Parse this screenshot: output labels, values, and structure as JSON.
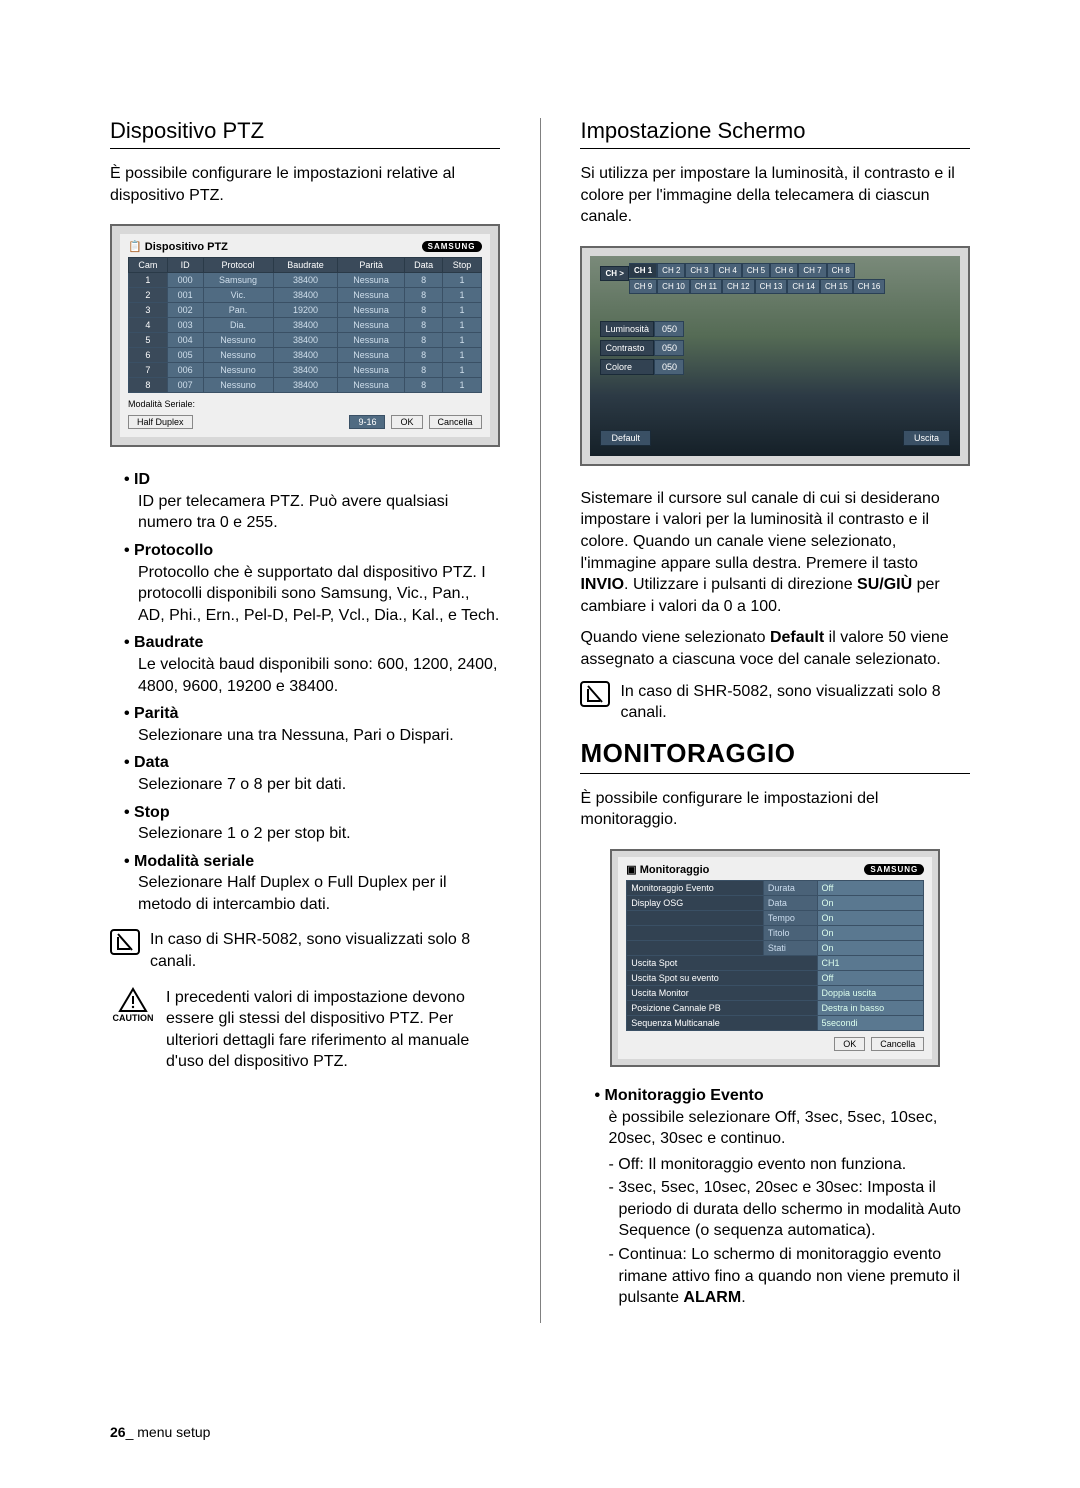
{
  "left": {
    "heading": "Dispositivo PTZ",
    "intro": "È possibile configurare le impostazioni relative al dispositivo PTZ.",
    "ptz_panel": {
      "title": "Dispositivo PTZ",
      "brand": "SAMSUNG",
      "headers": [
        "Cam",
        "ID",
        "Protocol",
        "Baudrate",
        "Parità",
        "Data",
        "Stop"
      ],
      "rows": [
        [
          "1",
          "000",
          "Samsung",
          "38400",
          "Nessuna",
          "8",
          "1"
        ],
        [
          "2",
          "001",
          "Vic.",
          "38400",
          "Nessuna",
          "8",
          "1"
        ],
        [
          "3",
          "002",
          "Pan.",
          "19200",
          "Nessuna",
          "8",
          "1"
        ],
        [
          "4",
          "003",
          "Dia.",
          "38400",
          "Nessuna",
          "8",
          "1"
        ],
        [
          "5",
          "004",
          "Nessuno",
          "38400",
          "Nessuna",
          "8",
          "1"
        ],
        [
          "6",
          "005",
          "Nessuno",
          "38400",
          "Nessuna",
          "8",
          "1"
        ],
        [
          "7",
          "006",
          "Nessuno",
          "38400",
          "Nessuna",
          "8",
          "1"
        ],
        [
          "8",
          "007",
          "Nessuno",
          "38400",
          "Nessuna",
          "8",
          "1"
        ]
      ],
      "serial_label": "Modalità Seriale:",
      "serial_value": "Half Duplex",
      "btn_range": "9-16",
      "btn_ok": "OK",
      "btn_cancel": "Cancella"
    },
    "bullets": [
      {
        "title": "ID",
        "desc": "ID per telecamera PTZ. Può avere qualsiasi numero tra 0 e 255."
      },
      {
        "title": "Protocollo",
        "desc": "Protocollo che è supportato dal dispositivo PTZ. I protocolli disponibili sono Samsung, Vic., Pan., AD, Phi., Ern., Pel-D, Pel-P, Vcl., Dia., Kal., e Tech."
      },
      {
        "title": "Baudrate",
        "desc": "Le velocità baud disponibili sono: 600, 1200, 2400, 4800, 9600, 19200 e 38400."
      },
      {
        "title": "Parità",
        "desc": "Selezionare una tra Nessuna, Pari o Dispari."
      },
      {
        "title": "Data",
        "desc": "Selezionare 7 o 8 per bit dati."
      },
      {
        "title": "Stop",
        "desc": "Selezionare 1 o 2 per stop bit."
      },
      {
        "title": "Modalità seriale",
        "desc": "Selezionare Half Duplex o Full Duplex per il metodo di intercambio dati."
      }
    ],
    "note1": "In caso di SHR-5082, sono visualizzati solo 8 canali.",
    "caution_label": "CAUTION",
    "caution_text": "I precedenti valori di impostazione devono essere gli stessi del dispositivo PTZ. Per ulteriori dettagli fare riferimento al manuale d'uso del dispositivo PTZ."
  },
  "right": {
    "heading": "Impostazione Schermo",
    "intro": "Si utilizza per impostare la luminosità, il contrasto e il colore per l'immagine della telecamera di ciascun canale.",
    "schermo": {
      "ch_label": "CH >",
      "row1": [
        "CH 1",
        "CH 2",
        "CH 3",
        "CH 4",
        "CH 5",
        "CH 6",
        "CH 7",
        "CH 8"
      ],
      "row2": [
        "CH 9",
        "CH 10",
        "CH 11",
        "CH 12",
        "CH 13",
        "CH 14",
        "CH 15",
        "CH 16"
      ],
      "sliders": [
        {
          "label": "Luminosità",
          "value": "050"
        },
        {
          "label": "Contrasto",
          "value": "050"
        },
        {
          "label": "Colore",
          "value": "050"
        }
      ],
      "btn_default": "Default",
      "btn_exit": "Uscita"
    },
    "para1_pre": "Sistemare il cursore sul canale di cui si desiderano impostare i valori per la luminosità il contrasto e il colore. Quando un canale viene selezionato, l'immagine appare sulla destra. Premere il tasto ",
    "para1_bold1": "INVIO",
    "para1_mid": ". Utilizzare i pulsanti di direzione ",
    "para1_bold2": "SU/GIÙ",
    "para1_post": " per cambiare i valori da 0 a 100.",
    "para2_pre": "Quando viene selezionato ",
    "para2_bold": "Default",
    "para2_post": " il valore 50 viene assegnato a ciascuna voce del canale selezionato.",
    "note2": "In caso di SHR-5082, sono visualizzati solo 8 canali.",
    "big_heading": "MONITORAGGIO",
    "big_intro": "È possibile configurare le impostazioni del monitoraggio.",
    "monit": {
      "title": "Monitoraggio",
      "brand": "SAMSUNG",
      "rows": [
        {
          "k": "Monitoraggio Evento",
          "sk": "Durata",
          "v": "Off"
        },
        {
          "k": "Display OSG",
          "sk": "Data",
          "v": "On"
        },
        {
          "k": "",
          "sk": "Tempo",
          "v": "On"
        },
        {
          "k": "",
          "sk": "Titolo",
          "v": "On"
        },
        {
          "k": "",
          "sk": "Stati",
          "v": "On"
        },
        {
          "k": "Uscita Spot",
          "sk": "",
          "v": "CH1"
        },
        {
          "k": "Uscita Spot su evento",
          "sk": "",
          "v": "Off"
        },
        {
          "k": "Uscita Monitor",
          "sk": "",
          "v": "Doppia uscita"
        },
        {
          "k": "Posizione Cannale PB",
          "sk": "",
          "v": "Destra in basso"
        },
        {
          "k": "Sequenza Multicanale",
          "sk": "",
          "v": "5secondi"
        }
      ],
      "btn_ok": "OK",
      "btn_cancel": "Cancella"
    },
    "monit_bullet_title": "Monitoraggio Evento",
    "monit_bullet_desc": "è possibile selezionare Off, 3sec, 5sec, 10sec, 20sec, 30sec e continuo.",
    "monit_sub": [
      "Off: Il monitoraggio evento non funziona.",
      "3sec, 5sec, 10sec, 20sec e 30sec: Imposta il periodo di durata dello schermo in modalità Auto Sequence (o sequenza automatica).",
      "Continua: Lo schermo di monitoraggio evento rimane attivo fino a quando non viene premuto il pulsante ALARM."
    ],
    "monit_sub_2_pre": "Continua: Lo schermo di monitoraggio evento rimane attivo fino a quando non viene premuto il pulsante ",
    "monit_sub_2_bold": "ALARM",
    "monit_sub_2_post": "."
  },
  "footer_page": "26",
  "footer_text": "_ menu setup"
}
